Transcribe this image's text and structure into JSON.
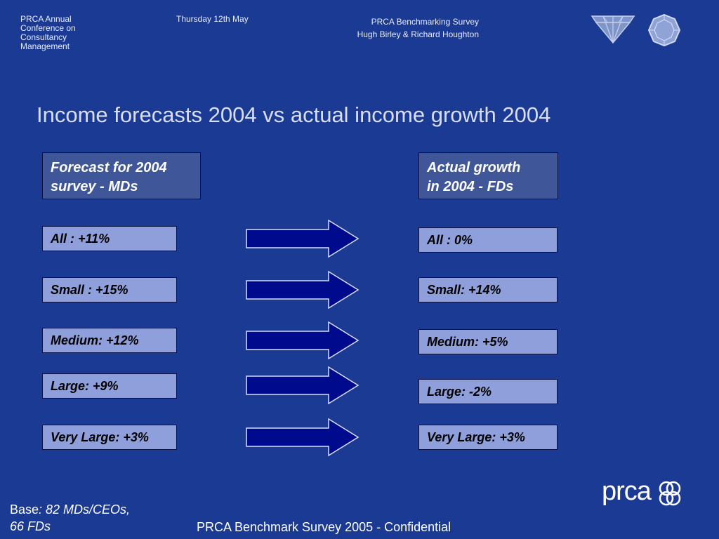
{
  "header": {
    "conference": [
      "PRCA Annual",
      "Conference on",
      "Consultancy",
      "Management"
    ],
    "date": "Thursday 12th May",
    "survey_title": "PRCA Benchmarking Survey",
    "authors": "Hugh Birley & Richard Houghton",
    "logos": [
      "diamond-logo-icon",
      "crystal-logo-icon"
    ]
  },
  "slide": {
    "title": "Income forecasts 2004 vs actual income growth 2004",
    "left_heading": [
      "Forecast for 2004",
      "survey - MDs"
    ],
    "right_heading": [
      "Actual growth",
      "in 2004 - FDs"
    ],
    "forecast": [
      "All : +11%",
      "Small : +15%",
      "Medium: +12%",
      "Large: +9%",
      "Very Large: +3%"
    ],
    "actual": [
      "All : 0%",
      "Small: +14%",
      "Medium: +5%",
      "Large: -2%",
      "Very Large: +3%"
    ],
    "arrow_icon": "right-arrow-icon"
  },
  "footer": {
    "base_label": "Base",
    "base_value_1": ": 82 MDs/CEOs,",
    "base_value_2": "66 FDs",
    "confidential": "PRCA Benchmark Survey 2005 - Confidential",
    "brand": "prca",
    "brand_icon": "prca-rings-logo-icon",
    "colors": {
      "background": "#1b3a94",
      "box_fill": "#8e9fdb",
      "heading_fill": "#3f5799",
      "arrow": "#000a8c"
    }
  }
}
